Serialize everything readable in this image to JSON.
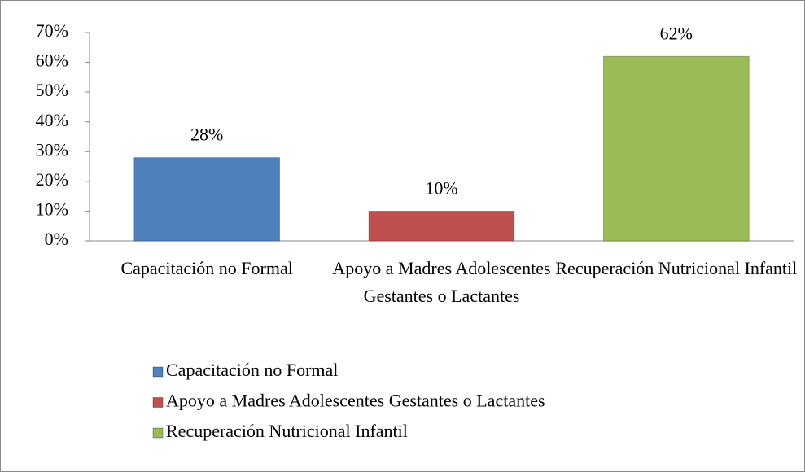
{
  "chart_data": {
    "type": "bar",
    "categories": [
      "Capacitación no Formal",
      "Apoyo a Madres Adolescentes Gestantes o Lactantes",
      "Recuperación Nutricional Infantil"
    ],
    "values": [
      28,
      10,
      62
    ],
    "value_labels": [
      "28%",
      "10%",
      "62%"
    ],
    "colors": [
      "#4f81bd",
      "#c0504d",
      "#9bbb59"
    ],
    "ylim": [
      0,
      70
    ],
    "yticks": [
      {
        "value": 0,
        "label": "0%"
      },
      {
        "value": 10,
        "label": "10%"
      },
      {
        "value": 20,
        "label": "20%"
      },
      {
        "value": 30,
        "label": "30%"
      },
      {
        "value": 40,
        "label": "40%"
      },
      {
        "value": 50,
        "label": "50%"
      },
      {
        "value": 60,
        "label": "60%"
      },
      {
        "value": 70,
        "label": "70%"
      }
    ],
    "grid": false,
    "legend": "bottom"
  }
}
